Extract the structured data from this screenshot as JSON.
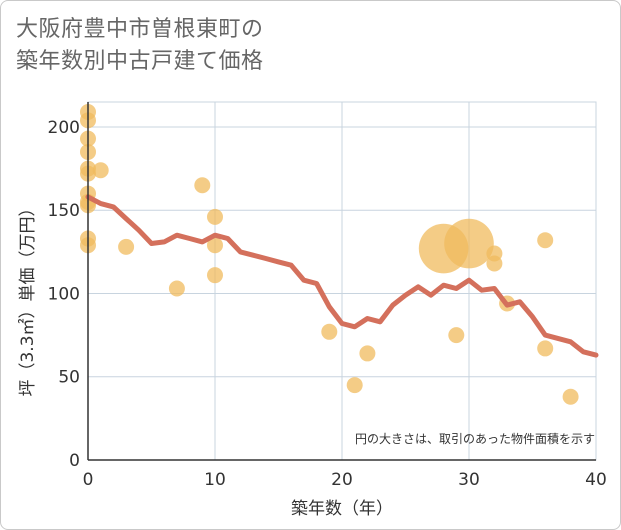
{
  "title_line1": "大阪府豊中市曽根東町の",
  "title_line2": "築年数別中古戸建て価格",
  "chart_data": {
    "type": "scatter",
    "xlabel": "築年数（年）",
    "ylabel": "坪（3.3㎡）単価（万円）",
    "xlim": [
      0,
      40
    ],
    "ylim": [
      0,
      215
    ],
    "xticks": [
      0,
      10,
      20,
      30,
      40
    ],
    "yticks": [
      0,
      50,
      100,
      150,
      200
    ],
    "xtick_labels": [
      "0",
      "10",
      "20",
      "30",
      "40"
    ],
    "ytick_labels": [
      "0",
      "50",
      "100",
      "150",
      "200"
    ],
    "note": "円の大きさは、取引のあった物件面積を示す",
    "colors": {
      "bubble": "#f0bb5e",
      "line": "#d4705c",
      "grid": "#c8d4df"
    },
    "points": [
      {
        "x": 0,
        "y": 209,
        "s": 1
      },
      {
        "x": 0,
        "y": 204,
        "s": 1
      },
      {
        "x": 0,
        "y": 193,
        "s": 1
      },
      {
        "x": 0,
        "y": 185,
        "s": 1
      },
      {
        "x": 0,
        "y": 175,
        "s": 1
      },
      {
        "x": 0,
        "y": 172,
        "s": 1
      },
      {
        "x": 0,
        "y": 160,
        "s": 1
      },
      {
        "x": 0,
        "y": 155,
        "s": 1
      },
      {
        "x": 0,
        "y": 153,
        "s": 1
      },
      {
        "x": 0,
        "y": 133,
        "s": 1
      },
      {
        "x": 0,
        "y": 129,
        "s": 1
      },
      {
        "x": 1,
        "y": 174,
        "s": 1
      },
      {
        "x": 3,
        "y": 128,
        "s": 1
      },
      {
        "x": 7,
        "y": 103,
        "s": 1
      },
      {
        "x": 9,
        "y": 165,
        "s": 1
      },
      {
        "x": 10,
        "y": 146,
        "s": 1
      },
      {
        "x": 10,
        "y": 129,
        "s": 1
      },
      {
        "x": 10,
        "y": 111,
        "s": 1
      },
      {
        "x": 19,
        "y": 77,
        "s": 1
      },
      {
        "x": 21,
        "y": 45,
        "s": 1
      },
      {
        "x": 22,
        "y": 64,
        "s": 1
      },
      {
        "x": 28,
        "y": 127,
        "s": 3.1
      },
      {
        "x": 29,
        "y": 75,
        "s": 1
      },
      {
        "x": 30,
        "y": 130,
        "s": 3.1
      },
      {
        "x": 32,
        "y": 124,
        "s": 1
      },
      {
        "x": 32,
        "y": 118,
        "s": 1
      },
      {
        "x": 33,
        "y": 94,
        "s": 1
      },
      {
        "x": 36,
        "y": 132,
        "s": 1
      },
      {
        "x": 36,
        "y": 67,
        "s": 1
      },
      {
        "x": 38,
        "y": 38,
        "s": 1
      }
    ],
    "trend": [
      {
        "x": 0,
        "y": 158
      },
      {
        "x": 1,
        "y": 154
      },
      {
        "x": 2,
        "y": 152
      },
      {
        "x": 3,
        "y": 145
      },
      {
        "x": 4,
        "y": 138
      },
      {
        "x": 5,
        "y": 130
      },
      {
        "x": 6,
        "y": 131
      },
      {
        "x": 7,
        "y": 135
      },
      {
        "x": 8,
        "y": 133
      },
      {
        "x": 9,
        "y": 131
      },
      {
        "x": 10,
        "y": 135
      },
      {
        "x": 11,
        "y": 133
      },
      {
        "x": 12,
        "y": 125
      },
      {
        "x": 13,
        "y": 123
      },
      {
        "x": 14,
        "y": 121
      },
      {
        "x": 15,
        "y": 119
      },
      {
        "x": 16,
        "y": 117
      },
      {
        "x": 17,
        "y": 108
      },
      {
        "x": 18,
        "y": 106
      },
      {
        "x": 19,
        "y": 92
      },
      {
        "x": 20,
        "y": 82
      },
      {
        "x": 21,
        "y": 80
      },
      {
        "x": 22,
        "y": 85
      },
      {
        "x": 23,
        "y": 83
      },
      {
        "x": 24,
        "y": 93
      },
      {
        "x": 25,
        "y": 99
      },
      {
        "x": 26,
        "y": 104
      },
      {
        "x": 27,
        "y": 99
      },
      {
        "x": 28,
        "y": 105
      },
      {
        "x": 29,
        "y": 103
      },
      {
        "x": 30,
        "y": 108
      },
      {
        "x": 31,
        "y": 102
      },
      {
        "x": 32,
        "y": 103
      },
      {
        "x": 33,
        "y": 93
      },
      {
        "x": 34,
        "y": 95
      },
      {
        "x": 35,
        "y": 86
      },
      {
        "x": 36,
        "y": 75
      },
      {
        "x": 37,
        "y": 73
      },
      {
        "x": 38,
        "y": 71
      },
      {
        "x": 39,
        "y": 65
      },
      {
        "x": 40,
        "y": 63
      }
    ]
  }
}
